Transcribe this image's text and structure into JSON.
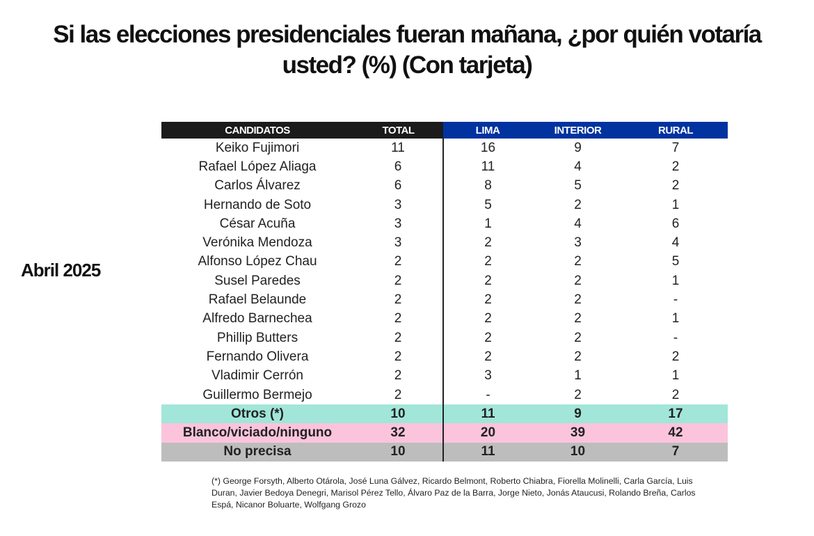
{
  "title": "Si las elecciones presidenciales fueran mañana, ¿por quién votaría usted? (%) (Con tarjeta)",
  "period": "Abril 2025",
  "colors": {
    "header_dark": "#1b1b1b",
    "header_blue": "#0033a0",
    "otros": "#a1e6d9",
    "blanco": "#fcc4dc",
    "no_precisa": "#bdbdbd"
  },
  "table": {
    "headers": [
      "CANDIDATOS",
      "TOTAL",
      "LIMA",
      "INTERIOR",
      "RURAL"
    ],
    "rows": [
      [
        "Keiko Fujimori",
        "11",
        "16",
        "9",
        "7"
      ],
      [
        "Rafael López Aliaga",
        "6",
        "11",
        "4",
        "2"
      ],
      [
        "Carlos Álvarez",
        "6",
        "8",
        "5",
        "2"
      ],
      [
        "Hernando de Soto",
        "3",
        "5",
        "2",
        "1"
      ],
      [
        "César Acuña",
        "3",
        "1",
        "4",
        "6"
      ],
      [
        "Verónika Mendoza",
        "3",
        "2",
        "3",
        "4"
      ],
      [
        "Alfonso López Chau",
        "2",
        "2",
        "2",
        "5"
      ],
      [
        "Susel Paredes",
        "2",
        "2",
        "2",
        "1"
      ],
      [
        "Rafael Belaunde",
        "2",
        "2",
        "2",
        "-"
      ],
      [
        "Alfredo Barnechea",
        "2",
        "2",
        "2",
        "1"
      ],
      [
        "Phillip Butters",
        "2",
        "2",
        "2",
        "-"
      ],
      [
        "Fernando Olivera",
        "2",
        "2",
        "2",
        "2"
      ],
      [
        "Vladimir Cerrón",
        "2",
        "3",
        "1",
        "1"
      ],
      [
        "Guillermo Bermejo",
        "2",
        "-",
        "2",
        "2"
      ],
      [
        "Otros (*)",
        "10",
        "11",
        "9",
        "17"
      ],
      [
        "Blanco/viciado/ninguno",
        "32",
        "20",
        "39",
        "42"
      ],
      [
        "No precisa",
        "10",
        "11",
        "10",
        "7"
      ]
    ]
  },
  "footnote": "(*) George Forsyth, Alberto Otárola, José Luna Gálvez, Ricardo Belmont, Roberto Chiabra, Fiorella Molinelli, Carla García, Luis Duran, Javier Bedoya Denegri, Marisol Pérez Tello, Álvaro Paz de la Barra, Jorge Nieto, Jonás Ataucusi, Rolando Breña, Carlos Espá, Nicanor Boluarte, Wolfgang Grozo"
}
